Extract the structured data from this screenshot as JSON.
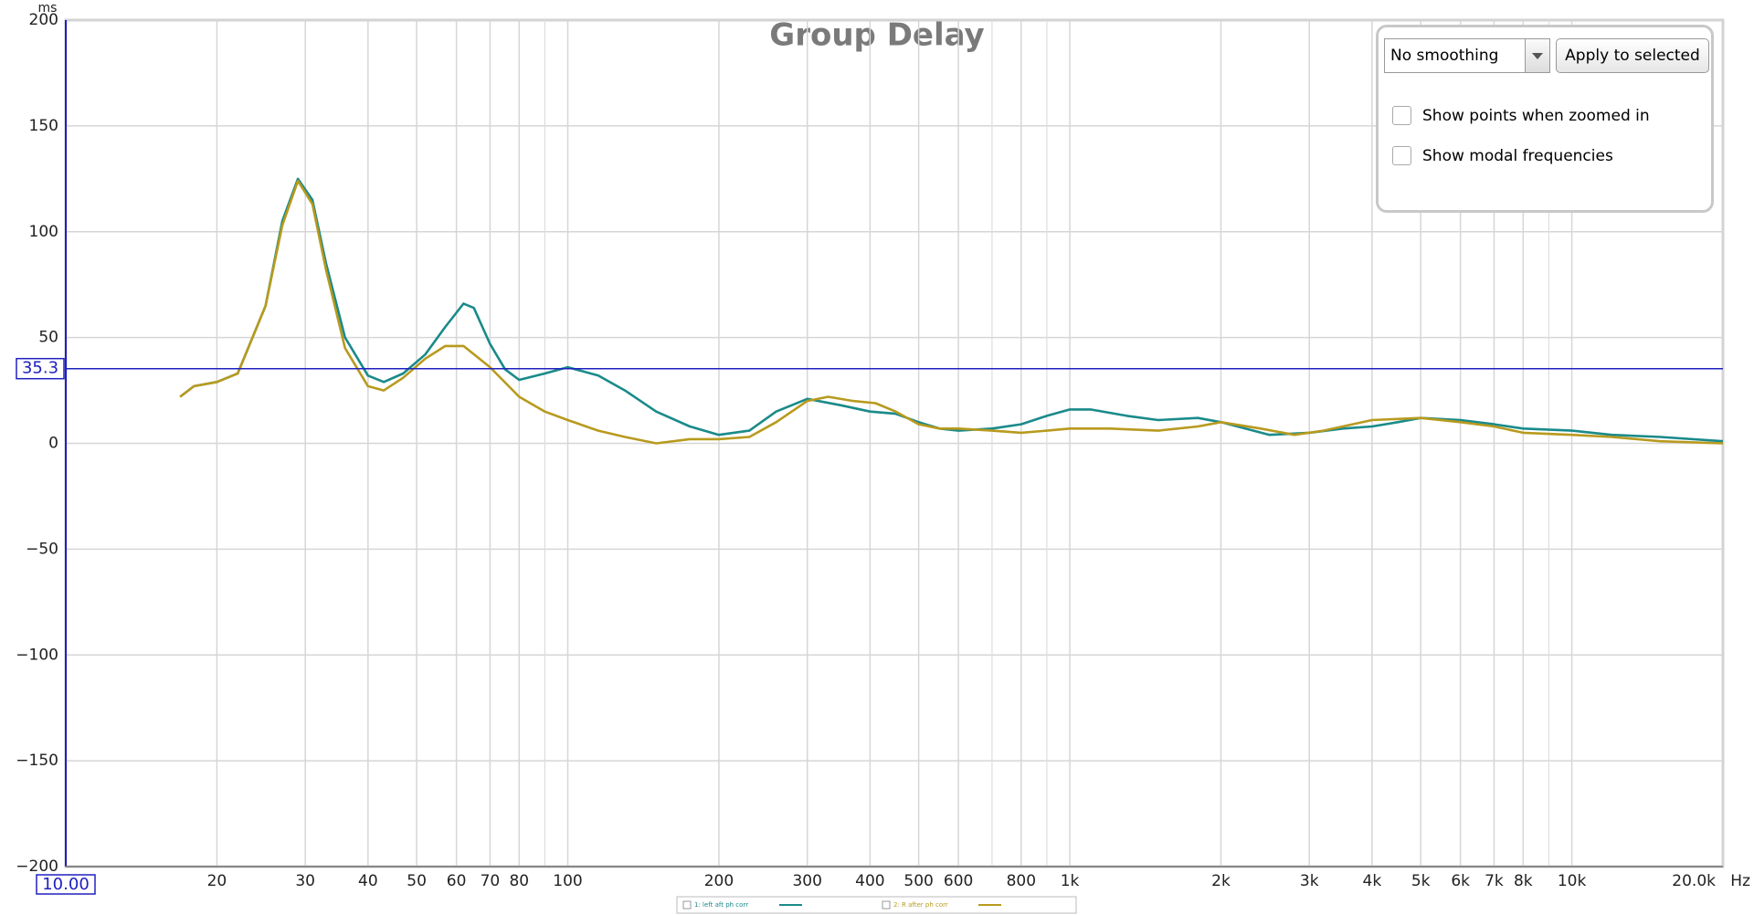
{
  "chart_data": {
    "type": "line",
    "title": "Group Delay",
    "ylabel": "ms",
    "xlabel": "Hz",
    "xscale": "log",
    "grid": true,
    "xlim": [
      10,
      20000
    ],
    "ylim": [
      -200,
      200
    ],
    "xticks": [
      20,
      30,
      40,
      50,
      60,
      70,
      80,
      100,
      200,
      300,
      400,
      500,
      600,
      800,
      {
        "value": 1000,
        "label": "1k"
      },
      {
        "value": 2000,
        "label": "2k"
      },
      {
        "value": 3000,
        "label": "3k"
      },
      {
        "value": 4000,
        "label": "4k"
      },
      {
        "value": 5000,
        "label": "5k"
      },
      {
        "value": 6000,
        "label": "6k"
      },
      {
        "value": 7000,
        "label": "7k"
      },
      {
        "value": 8000,
        "label": "8k"
      },
      {
        "value": 10000,
        "label": "10k"
      },
      {
        "value": 20000,
        "label": "20.0k"
      }
    ],
    "xminor_ticks": [
      90,
      700,
      900,
      9000
    ],
    "yticks": [
      {
        "value": -200,
        "label": "−200"
      },
      {
        "value": -150,
        "label": "−150"
      },
      {
        "value": -100,
        "label": "−100"
      },
      {
        "value": -50,
        "label": "−50"
      },
      0,
      50,
      100,
      150,
      200
    ],
    "cursor": {
      "x": 10,
      "x_label": "10.00",
      "y": 35.3,
      "color": "#2020c0"
    },
    "series": [
      {
        "name": "1: left aft ph corr",
        "color": "#1a8a8a",
        "x": [
          16.9,
          18,
          20,
          22,
          25,
          27,
          29,
          31,
          33,
          36,
          40,
          43,
          47,
          52,
          57,
          62,
          65,
          70,
          75,
          80,
          90,
          100,
          115,
          130,
          150,
          175,
          200,
          230,
          260,
          300,
          350,
          400,
          450,
          500,
          550,
          600,
          700,
          800,
          900,
          1000,
          1100,
          1300,
          1500,
          1800,
          2000,
          2500,
          3000,
          3500,
          4000,
          4500,
          5000,
          6000,
          7000,
          8000,
          10000,
          12000,
          15000,
          20000
        ],
        "values": [
          22,
          27,
          29,
          33,
          65,
          105,
          125,
          115,
          85,
          50,
          32,
          29,
          33,
          42,
          55,
          66,
          64,
          47,
          35,
          30,
          33,
          36,
          32,
          25,
          15,
          8,
          4,
          6,
          15,
          21,
          18,
          15,
          14,
          10,
          7,
          6,
          7,
          9,
          13,
          16,
          16,
          13,
          11,
          12,
          10,
          4,
          5,
          7,
          8,
          10,
          12,
          11,
          9,
          7,
          6,
          4,
          3,
          1
        ]
      },
      {
        "name": "2: R after ph corr",
        "color": "#b89a1e",
        "x": [
          16.9,
          18,
          20,
          22,
          25,
          27,
          29,
          31,
          33,
          36,
          40,
          43,
          47,
          52,
          57,
          62,
          70,
          80,
          90,
          100,
          115,
          130,
          150,
          175,
          200,
          230,
          260,
          300,
          330,
          370,
          410,
          450,
          500,
          550,
          600,
          700,
          800,
          900,
          1000,
          1200,
          1500,
          1800,
          2000,
          2400,
          2800,
          3200,
          4000,
          5000,
          6000,
          7000,
          8000,
          10000,
          12000,
          15000,
          20000
        ],
        "values": [
          22,
          27,
          29,
          33,
          65,
          103,
          124,
          113,
          82,
          45,
          27,
          25,
          31,
          40,
          46,
          46,
          36,
          22,
          15,
          11,
          6,
          3,
          0,
          2,
          2,
          3,
          10,
          20,
          22,
          20,
          19,
          15,
          9,
          7,
          7,
          6,
          5,
          6,
          7,
          7,
          6,
          8,
          10,
          7,
          4,
          6,
          11,
          12,
          10,
          8,
          5,
          4,
          3,
          1,
          0
        ]
      }
    ]
  },
  "controls": {
    "smoothing": "No  smoothing",
    "apply_button": "Apply to selected",
    "checkboxes": [
      "Show points when zoomed in",
      "Show modal frequencies"
    ]
  }
}
